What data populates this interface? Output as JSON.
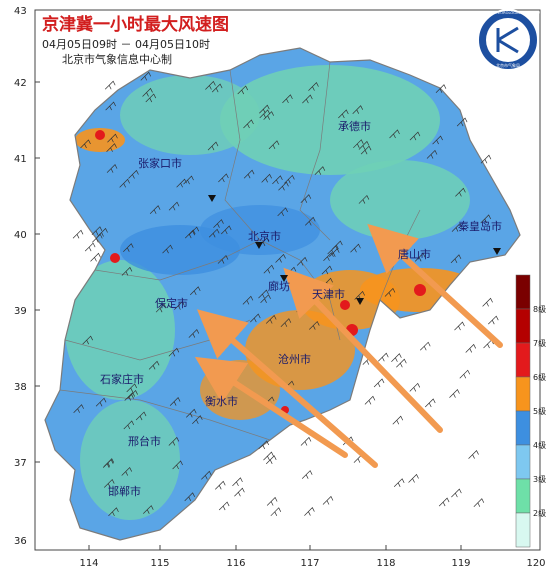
{
  "header": {
    "title": "京津冀一小时最大风速图",
    "time_range": "04月05日09时 － 04月05日10时",
    "producer": "北京市气象信息中心制"
  },
  "logo": {
    "text": "BEIJING METEOROLOGICAL BUREAU",
    "subtext": "北京市气象局"
  },
  "axes": {
    "lon_ticks": [
      "114",
      "115",
      "116",
      "117",
      "118",
      "119",
      "120"
    ],
    "lat_ticks": [
      "43",
      "42",
      "41",
      "40",
      "39",
      "38",
      "37",
      "36"
    ]
  },
  "cities": [
    {
      "name": "承德市"
    },
    {
      "name": "张家口市"
    },
    {
      "name": "北京市"
    },
    {
      "name": "秦皇岛市"
    },
    {
      "name": "唐山市"
    },
    {
      "name": "天津市"
    },
    {
      "name": "保定市"
    },
    {
      "name": "廊坊"
    },
    {
      "name": "沧州市"
    },
    {
      "name": "石家庄市"
    },
    {
      "name": "衡水市"
    },
    {
      "name": "邢台市"
    },
    {
      "name": "邯郸市"
    }
  ],
  "legend": {
    "levels": [
      "8级",
      "7级",
      "6级",
      "5级",
      "4级",
      "3级",
      "2级"
    ],
    "colors": [
      "#7a0000",
      "#b40000",
      "#e31a1c",
      "#f7941d",
      "#3d8fe0",
      "#7ec8f0",
      "#6ee0a8",
      "#d8f8f0"
    ]
  },
  "colors": {
    "land_base": "#5aa5e6",
    "land_light": "#6fd0b6",
    "arrow": "#f29a50",
    "border": "#7b7b7b"
  }
}
